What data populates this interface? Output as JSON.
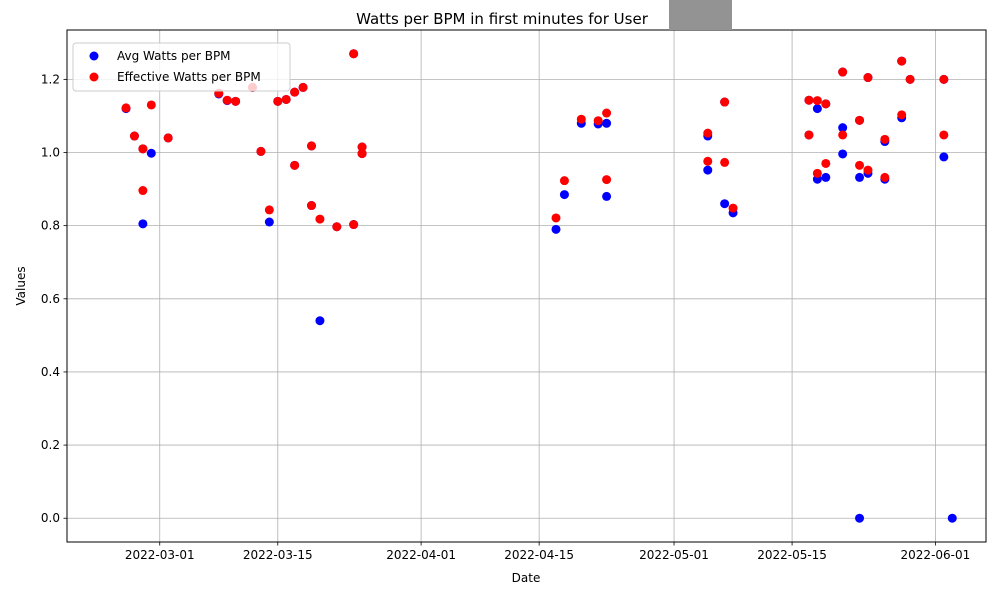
{
  "chart_data": {
    "type": "scatter",
    "title": "Watts per BPM in first minutes for User",
    "xlabel": "Date",
    "ylabel": "Values",
    "x_axis_type": "date",
    "xlim": [
      "2022-02-18",
      "2022-06-07"
    ],
    "ylim": [
      -0.065,
      1.335
    ],
    "x_ticks": [
      "2022-03-01",
      "2022-03-15",
      "2022-04-01",
      "2022-04-15",
      "2022-05-01",
      "2022-05-15",
      "2022-06-01"
    ],
    "y_ticks": [
      "0.0",
      "0.2",
      "0.4",
      "0.6",
      "0.8",
      "1.0",
      "1.2"
    ],
    "y_tick_values": [
      0.0,
      0.2,
      0.4,
      0.6,
      0.8,
      1.0,
      1.2
    ],
    "grid": true,
    "legend_position": "upper left",
    "series": [
      {
        "name": "Avg Watts per BPM",
        "color": "#0000ff",
        "points": [
          [
            "2022-02-25",
            1.12
          ],
          [
            "2022-02-26",
            1.045
          ],
          [
            "2022-02-27",
            0.805
          ],
          [
            "2022-02-27",
            1.01
          ],
          [
            "2022-02-28",
            0.998
          ],
          [
            "2022-03-02",
            1.04
          ],
          [
            "2022-03-08",
            1.16
          ],
          [
            "2022-03-09",
            1.142
          ],
          [
            "2022-03-10",
            1.14
          ],
          [
            "2022-03-12",
            1.178
          ],
          [
            "2022-03-13",
            1.003
          ],
          [
            "2022-03-14",
            0.81
          ],
          [
            "2022-03-15",
            1.14
          ],
          [
            "2022-03-16",
            1.145
          ],
          [
            "2022-03-17",
            1.165
          ],
          [
            "2022-03-17",
            0.965
          ],
          [
            "2022-03-18",
            1.178
          ],
          [
            "2022-03-19",
            1.018
          ],
          [
            "2022-03-19",
            0.855
          ],
          [
            "2022-03-20",
            0.54
          ],
          [
            "2022-03-22",
            0.797
          ],
          [
            "2022-03-24",
            1.27
          ],
          [
            "2022-03-24",
            0.803
          ],
          [
            "2022-03-25",
            1.015
          ],
          [
            "2022-03-25",
            0.997
          ],
          [
            "2022-04-17",
            0.79
          ],
          [
            "2022-04-18",
            0.885
          ],
          [
            "2022-04-20",
            1.08
          ],
          [
            "2022-04-22",
            1.078
          ],
          [
            "2022-04-23",
            1.08
          ],
          [
            "2022-04-23",
            0.88
          ],
          [
            "2022-05-05",
            0.952
          ],
          [
            "2022-05-05",
            1.045
          ],
          [
            "2022-05-07",
            1.138
          ],
          [
            "2022-05-07",
            0.86
          ],
          [
            "2022-05-08",
            0.835
          ],
          [
            "2022-05-17",
            1.143
          ],
          [
            "2022-05-17",
            1.048
          ],
          [
            "2022-05-18",
            1.12
          ],
          [
            "2022-05-18",
            0.927
          ],
          [
            "2022-05-19",
            1.133
          ],
          [
            "2022-05-19",
            0.932
          ],
          [
            "2022-05-21",
            1.068
          ],
          [
            "2022-05-21",
            0.996
          ],
          [
            "2022-05-21",
            1.22
          ],
          [
            "2022-05-23",
            1.088
          ],
          [
            "2022-05-23",
            0.932
          ],
          [
            "2022-05-23",
            0.0
          ],
          [
            "2022-05-24",
            1.205
          ],
          [
            "2022-05-24",
            0.943
          ],
          [
            "2022-05-26",
            1.03
          ],
          [
            "2022-05-26",
            0.927
          ],
          [
            "2022-05-28",
            1.25
          ],
          [
            "2022-05-28",
            1.095
          ],
          [
            "2022-05-29",
            1.2
          ],
          [
            "2022-06-02",
            1.2
          ],
          [
            "2022-06-02",
            0.988
          ],
          [
            "2022-06-03",
            0.0
          ]
        ]
      },
      {
        "name": "Effective Watts per BPM",
        "color": "#ff0000",
        "points": [
          [
            "2022-02-25",
            1.122
          ],
          [
            "2022-02-26",
            1.045
          ],
          [
            "2022-02-27",
            1.01
          ],
          [
            "2022-02-27",
            0.896
          ],
          [
            "2022-02-28",
            1.13
          ],
          [
            "2022-03-02",
            1.04
          ],
          [
            "2022-03-08",
            1.162
          ],
          [
            "2022-03-09",
            1.143
          ],
          [
            "2022-03-10",
            1.14
          ],
          [
            "2022-03-12",
            1.178
          ],
          [
            "2022-03-13",
            1.003
          ],
          [
            "2022-03-14",
            0.843
          ],
          [
            "2022-03-15",
            1.14
          ],
          [
            "2022-03-16",
            1.145
          ],
          [
            "2022-03-17",
            1.165
          ],
          [
            "2022-03-17",
            0.965
          ],
          [
            "2022-03-18",
            1.178
          ],
          [
            "2022-03-19",
            1.018
          ],
          [
            "2022-03-19",
            0.855
          ],
          [
            "2022-03-20",
            0.818
          ],
          [
            "2022-03-22",
            0.797
          ],
          [
            "2022-03-24",
            1.27
          ],
          [
            "2022-03-24",
            0.803
          ],
          [
            "2022-03-25",
            1.015
          ],
          [
            "2022-03-25",
            0.997
          ],
          [
            "2022-04-17",
            0.821
          ],
          [
            "2022-04-18",
            0.923
          ],
          [
            "2022-04-20",
            1.091
          ],
          [
            "2022-04-22",
            1.087
          ],
          [
            "2022-04-23",
            1.108
          ],
          [
            "2022-04-23",
            0.926
          ],
          [
            "2022-05-05",
            0.976
          ],
          [
            "2022-05-05",
            1.053
          ],
          [
            "2022-05-07",
            1.138
          ],
          [
            "2022-05-07",
            0.973
          ],
          [
            "2022-05-08",
            0.848
          ],
          [
            "2022-05-17",
            1.143
          ],
          [
            "2022-05-17",
            1.048
          ],
          [
            "2022-05-18",
            1.142
          ],
          [
            "2022-05-18",
            0.943
          ],
          [
            "2022-05-19",
            1.133
          ],
          [
            "2022-05-19",
            0.97
          ],
          [
            "2022-05-21",
            1.22
          ],
          [
            "2022-05-21",
            1.048
          ],
          [
            "2022-05-23",
            1.088
          ],
          [
            "2022-05-23",
            0.965
          ],
          [
            "2022-05-24",
            1.205
          ],
          [
            "2022-05-24",
            0.952
          ],
          [
            "2022-05-26",
            1.036
          ],
          [
            "2022-05-26",
            0.932
          ],
          [
            "2022-05-28",
            1.25
          ],
          [
            "2022-05-28",
            1.103
          ],
          [
            "2022-05-29",
            1.2
          ],
          [
            "2022-06-02",
            1.2
          ],
          [
            "2022-06-02",
            1.048
          ]
        ]
      }
    ],
    "redaction_color": "#939393"
  }
}
